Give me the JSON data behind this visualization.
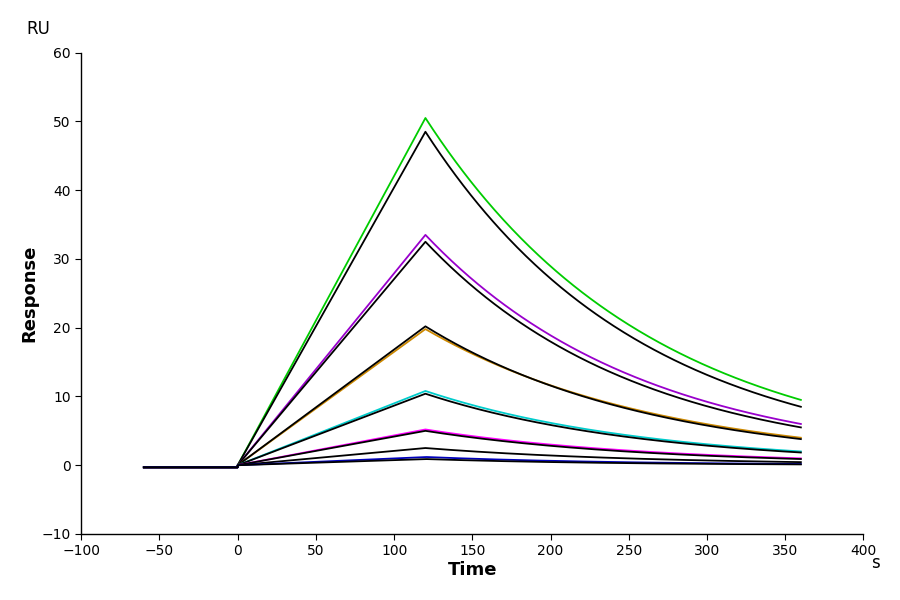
{
  "xlabel": "Time",
  "ylabel": "Response",
  "xlabel_unit": "s",
  "ylabel_unit": "RU",
  "xlim": [
    -100,
    400
  ],
  "ylim": [
    -10,
    60
  ],
  "xticks": [
    -100,
    -50,
    0,
    50,
    100,
    150,
    200,
    250,
    300,
    350,
    400
  ],
  "yticks": [
    -10,
    0,
    10,
    20,
    30,
    40,
    50,
    60
  ],
  "background_color": "#ffffff",
  "t_assoc_start": 0,
  "t_assoc_end": 120,
  "t_dissoc_end": 360,
  "t_pre_start": -60,
  "curves": [
    {
      "color": "#00cc00",
      "peak": 50.5,
      "end_dissoc": 9.5,
      "kd": 0.00475
    },
    {
      "color": "#000000",
      "peak": 48.5,
      "end_dissoc": 8.5,
      "kd": 0.0046
    },
    {
      "color": "#9900cc",
      "peak": 33.5,
      "end_dissoc": 6.0,
      "kd": 0.0045
    },
    {
      "color": "#000000",
      "peak": 32.5,
      "end_dissoc": 5.5,
      "kd": 0.0044
    },
    {
      "color": "#cc8800",
      "peak": 19.8,
      "end_dissoc": 4.0,
      "kd": 0.0042
    },
    {
      "color": "#000000",
      "peak": 20.2,
      "end_dissoc": 3.8,
      "kd": 0.00418
    },
    {
      "color": "#00cccc",
      "peak": 10.8,
      "end_dissoc": 2.0,
      "kd": 0.00415
    },
    {
      "color": "#000000",
      "peak": 10.4,
      "end_dissoc": 1.85,
      "kd": 0.00412
    },
    {
      "color": "#ff00ff",
      "peak": 5.2,
      "end_dissoc": 1.0,
      "kd": 0.00408
    },
    {
      "color": "#000000",
      "peak": 5.0,
      "end_dissoc": 0.9,
      "kd": 0.00405
    },
    {
      "color": "#000000",
      "peak": 2.5,
      "end_dissoc": 0.45,
      "kd": 0.004
    },
    {
      "color": "#0000bb",
      "peak": 1.2,
      "end_dissoc": 0.18,
      "kd": 0.00395
    },
    {
      "color": "#000000",
      "peak": 0.9,
      "end_dissoc": 0.12,
      "kd": 0.0039
    }
  ]
}
